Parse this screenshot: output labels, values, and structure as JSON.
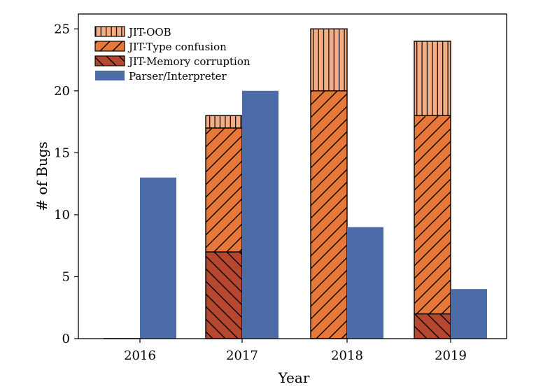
{
  "chart_data": {
    "type": "bar",
    "categories": [
      "2016",
      "2017",
      "2018",
      "2019"
    ],
    "stack_series": [
      {
        "name": "JIT-Memory corruption",
        "values": [
          0,
          7,
          0,
          2
        ],
        "color": "#b5472e",
        "hatch": "backslash"
      },
      {
        "name": "JIT-Type confusion",
        "values": [
          0,
          10,
          20,
          16
        ],
        "color": "#e8773a",
        "hatch": "slash"
      },
      {
        "name": "JIT-OOB",
        "values": [
          0,
          1,
          5,
          6
        ],
        "color": "#f4ae85",
        "hatch": "vertical"
      }
    ],
    "side_series": {
      "name": "Parser/Interpreter",
      "values": [
        13,
        20,
        9,
        4
      ],
      "color": "#4c6ca8"
    },
    "legend_order": [
      "JIT-OOB",
      "JIT-Type confusion",
      "JIT-Memory corruption",
      "Parser/Interpreter"
    ],
    "xlabel": "Year",
    "ylabel": "# of Bugs",
    "ylim": [
      0,
      26.2
    ],
    "yticks": [
      "0",
      "5",
      "10",
      "15",
      "20",
      "25"
    ],
    "grid": false,
    "legend_position": "top-left"
  }
}
